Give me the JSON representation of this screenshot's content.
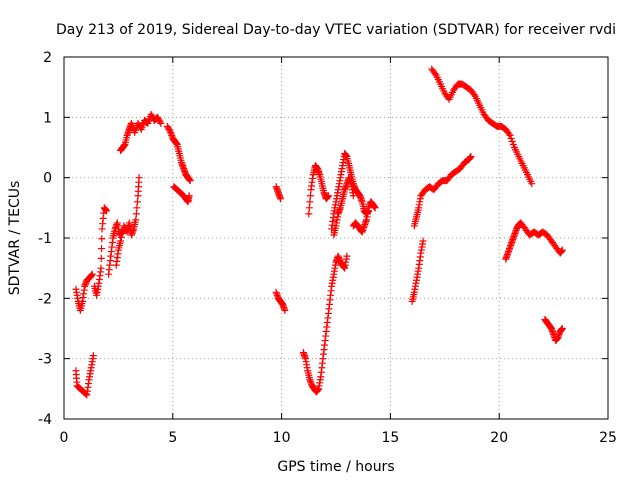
{
  "chart_data": {
    "type": "scatter",
    "title": "Day 213 of 2019, Sidereal Day-to-day VTEC variation (SDTVAR) for receiver rvdi",
    "xlabel": "GPS time / hours",
    "ylabel": "SDTVAR / TECUs",
    "xlim": [
      0,
      25
    ],
    "ylim": [
      -4,
      2
    ],
    "xticks": [
      0,
      5,
      10,
      15,
      20,
      25
    ],
    "yticks": [
      -4,
      -3,
      -2,
      -1,
      0,
      1,
      2
    ],
    "grid": true,
    "marker": "plus",
    "color": "#ff0000",
    "segments": [
      [
        [
          0.55,
          -3.2
        ],
        [
          0.6,
          -3.45
        ],
        [
          0.75,
          -3.5
        ],
        [
          0.9,
          -3.55
        ],
        [
          1.05,
          -3.6
        ],
        [
          1.15,
          -3.35
        ],
        [
          1.25,
          -3.15
        ],
        [
          1.35,
          -2.95
        ]
      ],
      [
        [
          0.55,
          -1.85
        ],
        [
          0.65,
          -2.05
        ],
        [
          0.75,
          -2.2
        ],
        [
          0.85,
          -2.05
        ],
        [
          0.95,
          -1.8
        ],
        [
          1.05,
          -1.7
        ],
        [
          1.2,
          -1.65
        ],
        [
          1.3,
          -1.6
        ]
      ],
      [
        [
          1.4,
          -1.8
        ],
        [
          1.5,
          -1.95
        ],
        [
          1.6,
          -1.75
        ],
        [
          1.7,
          -1.5
        ],
        [
          1.75,
          -0.85
        ],
        [
          1.85,
          -0.5
        ],
        [
          1.95,
          -0.55
        ]
      ],
      [
        [
          2.05,
          -1.6
        ],
        [
          2.15,
          -1.3
        ],
        [
          2.25,
          -1.0
        ],
        [
          2.35,
          -0.85
        ],
        [
          2.45,
          -0.75
        ],
        [
          2.55,
          -0.95
        ],
        [
          2.7,
          -0.9
        ],
        [
          2.8,
          -0.85
        ]
      ],
      [
        [
          2.4,
          -1.45
        ],
        [
          2.5,
          -1.2
        ],
        [
          2.6,
          -1.05
        ],
        [
          2.75,
          -0.8
        ],
        [
          2.9,
          -0.9
        ],
        [
          3.0,
          -0.75
        ],
        [
          3.1,
          -0.95
        ],
        [
          3.2,
          -0.85
        ],
        [
          3.3,
          -0.7
        ],
        [
          3.4,
          -0.3
        ],
        [
          3.45,
          0.0
        ]
      ],
      [
        [
          2.6,
          0.45
        ],
        [
          2.7,
          0.5
        ],
        [
          2.8,
          0.55
        ],
        [
          2.9,
          0.7
        ],
        [
          3.0,
          0.8
        ],
        [
          3.1,
          0.9
        ],
        [
          3.25,
          0.75
        ],
        [
          3.4,
          0.9
        ],
        [
          3.55,
          0.8
        ],
        [
          3.7,
          0.95
        ],
        [
          3.85,
          0.9
        ],
        [
          4.0,
          1.05
        ],
        [
          4.15,
          0.95
        ],
        [
          4.3,
          1.0
        ],
        [
          4.45,
          0.9
        ]
      ],
      [
        [
          4.75,
          0.85
        ],
        [
          4.9,
          0.75
        ],
        [
          5.0,
          0.65
        ],
        [
          5.1,
          0.6
        ],
        [
          5.2,
          0.55
        ],
        [
          5.3,
          0.4
        ],
        [
          5.4,
          0.25
        ],
        [
          5.5,
          0.15
        ],
        [
          5.6,
          0.05
        ],
        [
          5.7,
          0.0
        ],
        [
          5.8,
          -0.05
        ]
      ],
      [
        [
          5.05,
          -0.15
        ],
        [
          5.2,
          -0.2
        ],
        [
          5.35,
          -0.25
        ],
        [
          5.5,
          -0.3
        ],
        [
          5.6,
          -0.35
        ],
        [
          5.7,
          -0.4
        ],
        [
          5.75,
          -0.3
        ]
      ],
      [
        [
          9.75,
          -0.15
        ],
        [
          9.85,
          -0.25
        ],
        [
          9.95,
          -0.35
        ]
      ],
      [
        [
          9.75,
          -1.9
        ],
        [
          9.85,
          -2.0
        ],
        [
          9.95,
          -2.05
        ],
        [
          10.05,
          -2.1
        ],
        [
          10.15,
          -2.2
        ]
      ],
      [
        [
          11.0,
          -2.9
        ],
        [
          11.1,
          -3.0
        ],
        [
          11.2,
          -3.2
        ],
        [
          11.3,
          -3.35
        ],
        [
          11.4,
          -3.45
        ],
        [
          11.5,
          -3.5
        ],
        [
          11.6,
          -3.55
        ],
        [
          11.7,
          -3.5
        ],
        [
          11.8,
          -3.3
        ],
        [
          11.9,
          -3.0
        ],
        [
          12.0,
          -2.7
        ],
        [
          12.1,
          -2.4
        ],
        [
          12.2,
          -2.1
        ],
        [
          12.3,
          -1.8
        ],
        [
          12.4,
          -1.6
        ],
        [
          12.5,
          -1.4
        ],
        [
          12.6,
          -1.3
        ],
        [
          12.7,
          -1.4
        ],
        [
          12.8,
          -1.45
        ],
        [
          12.9,
          -1.5
        ],
        [
          13.0,
          -1.3
        ]
      ],
      [
        [
          11.25,
          -0.6
        ],
        [
          11.35,
          -0.2
        ],
        [
          11.45,
          0.05
        ],
        [
          11.55,
          0.2
        ],
        [
          11.65,
          0.15
        ],
        [
          11.75,
          0.05
        ],
        [
          11.85,
          -0.1
        ],
        [
          11.95,
          -0.25
        ],
        [
          12.05,
          -0.35
        ],
        [
          12.15,
          -0.3
        ]
      ],
      [
        [
          12.3,
          -0.85
        ],
        [
          12.4,
          -0.6
        ],
        [
          12.5,
          -0.4
        ],
        [
          12.6,
          -0.2
        ],
        [
          12.7,
          0.0
        ],
        [
          12.8,
          0.2
        ],
        [
          12.9,
          0.4
        ],
        [
          13.0,
          0.35
        ],
        [
          13.1,
          0.2
        ],
        [
          13.2,
          0.05
        ],
        [
          13.3,
          -0.1
        ],
        [
          13.4,
          -0.2
        ],
        [
          13.5,
          -0.25
        ],
        [
          13.6,
          -0.3
        ],
        [
          13.7,
          -0.4
        ],
        [
          13.8,
          -0.55
        ],
        [
          13.9,
          -0.6
        ],
        [
          14.0,
          -0.55
        ]
      ],
      [
        [
          12.4,
          -0.95
        ],
        [
          12.5,
          -0.8
        ],
        [
          12.6,
          -0.6
        ],
        [
          12.7,
          -0.5
        ],
        [
          12.8,
          -0.35
        ],
        [
          12.9,
          -0.2
        ],
        [
          13.0,
          -0.1
        ],
        [
          13.1,
          0.0
        ],
        [
          13.2,
          -0.1
        ],
        [
          13.3,
          -0.3
        ]
      ],
      [
        [
          13.3,
          -0.8
        ],
        [
          13.4,
          -0.75
        ],
        [
          13.5,
          -0.8
        ],
        [
          13.6,
          -0.85
        ],
        [
          13.7,
          -0.9
        ],
        [
          13.8,
          -0.8
        ],
        [
          13.9,
          -0.7
        ],
        [
          14.0,
          -0.5
        ],
        [
          14.1,
          -0.4
        ],
        [
          14.2,
          -0.45
        ],
        [
          14.3,
          -0.5
        ]
      ],
      [
        [
          16.0,
          -2.05
        ],
        [
          16.1,
          -1.9
        ],
        [
          16.2,
          -1.7
        ],
        [
          16.3,
          -1.5
        ],
        [
          16.4,
          -1.25
        ],
        [
          16.5,
          -1.05
        ]
      ],
      [
        [
          16.1,
          -0.8
        ],
        [
          16.2,
          -0.65
        ],
        [
          16.3,
          -0.5
        ],
        [
          16.4,
          -0.3
        ],
        [
          16.6,
          -0.2
        ],
        [
          16.8,
          -0.15
        ],
        [
          17.0,
          -0.2
        ],
        [
          17.2,
          -0.1
        ],
        [
          17.4,
          -0.05
        ],
        [
          17.6,
          -0.05
        ],
        [
          17.8,
          0.05
        ],
        [
          18.0,
          0.1
        ],
        [
          18.2,
          0.15
        ],
        [
          18.4,
          0.25
        ],
        [
          18.6,
          0.3
        ],
        [
          18.7,
          0.35
        ]
      ],
      [
        [
          16.9,
          1.8
        ],
        [
          17.1,
          1.7
        ],
        [
          17.3,
          1.55
        ],
        [
          17.5,
          1.4
        ],
        [
          17.7,
          1.3
        ],
        [
          17.9,
          1.45
        ],
        [
          18.1,
          1.55
        ],
        [
          18.3,
          1.55
        ],
        [
          18.5,
          1.5
        ],
        [
          18.7,
          1.45
        ],
        [
          18.9,
          1.35
        ],
        [
          19.1,
          1.2
        ],
        [
          19.3,
          1.05
        ],
        [
          19.5,
          0.95
        ],
        [
          19.7,
          0.9
        ],
        [
          19.9,
          0.85
        ],
        [
          20.1,
          0.85
        ],
        [
          20.3,
          0.8
        ],
        [
          20.5,
          0.7
        ],
        [
          20.7,
          0.5
        ],
        [
          20.9,
          0.35
        ],
        [
          21.1,
          0.2
        ],
        [
          21.3,
          0.05
        ],
        [
          21.5,
          -0.1
        ]
      ],
      [
        [
          20.3,
          -1.35
        ],
        [
          20.4,
          -1.25
        ],
        [
          20.5,
          -1.15
        ],
        [
          20.6,
          -1.05
        ],
        [
          20.7,
          -0.95
        ],
        [
          20.8,
          -0.85
        ],
        [
          20.9,
          -0.78
        ],
        [
          21.0,
          -0.75
        ],
        [
          21.2,
          -0.85
        ],
        [
          21.4,
          -0.95
        ],
        [
          21.6,
          -0.9
        ],
        [
          21.8,
          -0.95
        ],
        [
          22.0,
          -0.9
        ],
        [
          22.2,
          -0.95
        ],
        [
          22.4,
          -1.05
        ],
        [
          22.6,
          -1.15
        ],
        [
          22.8,
          -1.25
        ],
        [
          22.9,
          -1.2
        ]
      ],
      [
        [
          22.1,
          -2.35
        ],
        [
          22.2,
          -2.4
        ],
        [
          22.3,
          -2.45
        ],
        [
          22.4,
          -2.5
        ],
        [
          22.5,
          -2.6
        ],
        [
          22.6,
          -2.7
        ],
        [
          22.7,
          -2.65
        ],
        [
          22.8,
          -2.55
        ],
        [
          22.9,
          -2.5
        ]
      ]
    ]
  }
}
